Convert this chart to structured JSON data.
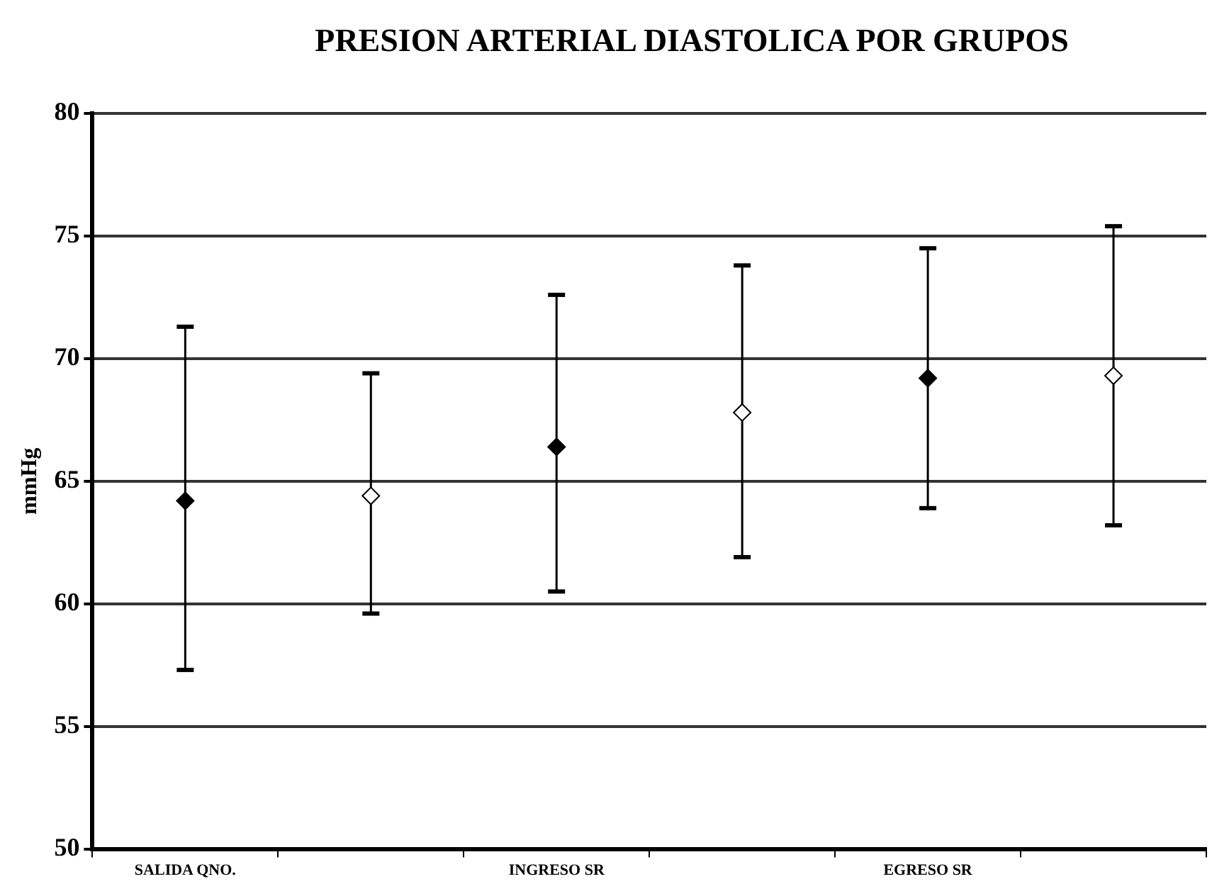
{
  "chart_data": {
    "type": "scatter",
    "title": "PRESION ARTERIAL DIASTOLICA POR GRUPOS",
    "ylabel": "mmHg",
    "categories": [
      "SALIDA QNO.",
      null,
      "INGRESO SR",
      null,
      "EGRESO SR",
      null
    ],
    "series": [
      {
        "color": "#000000",
        "values": [
          64.2,
          null,
          66.4,
          null,
          69.2,
          null
        ],
        "errors": [
          [
            57.3,
            71.3
          ],
          null,
          [
            60.5,
            72.6
          ],
          null,
          [
            63.9,
            74.5
          ],
          null
        ]
      },
      {
        "color": "#ffffff",
        "values": [
          null,
          64.4,
          null,
          67.8,
          null,
          69.3
        ],
        "errors": [
          null,
          [
            59.6,
            69.4
          ],
          null,
          [
            61.9,
            73.8
          ],
          null,
          [
            63.2,
            75.4
          ]
        ]
      }
    ],
    "ylim": [
      50,
      80
    ],
    "yticks": [
      50,
      55,
      60,
      65,
      70,
      75,
      80
    ],
    "grid": "y",
    "marker": "diamond"
  }
}
